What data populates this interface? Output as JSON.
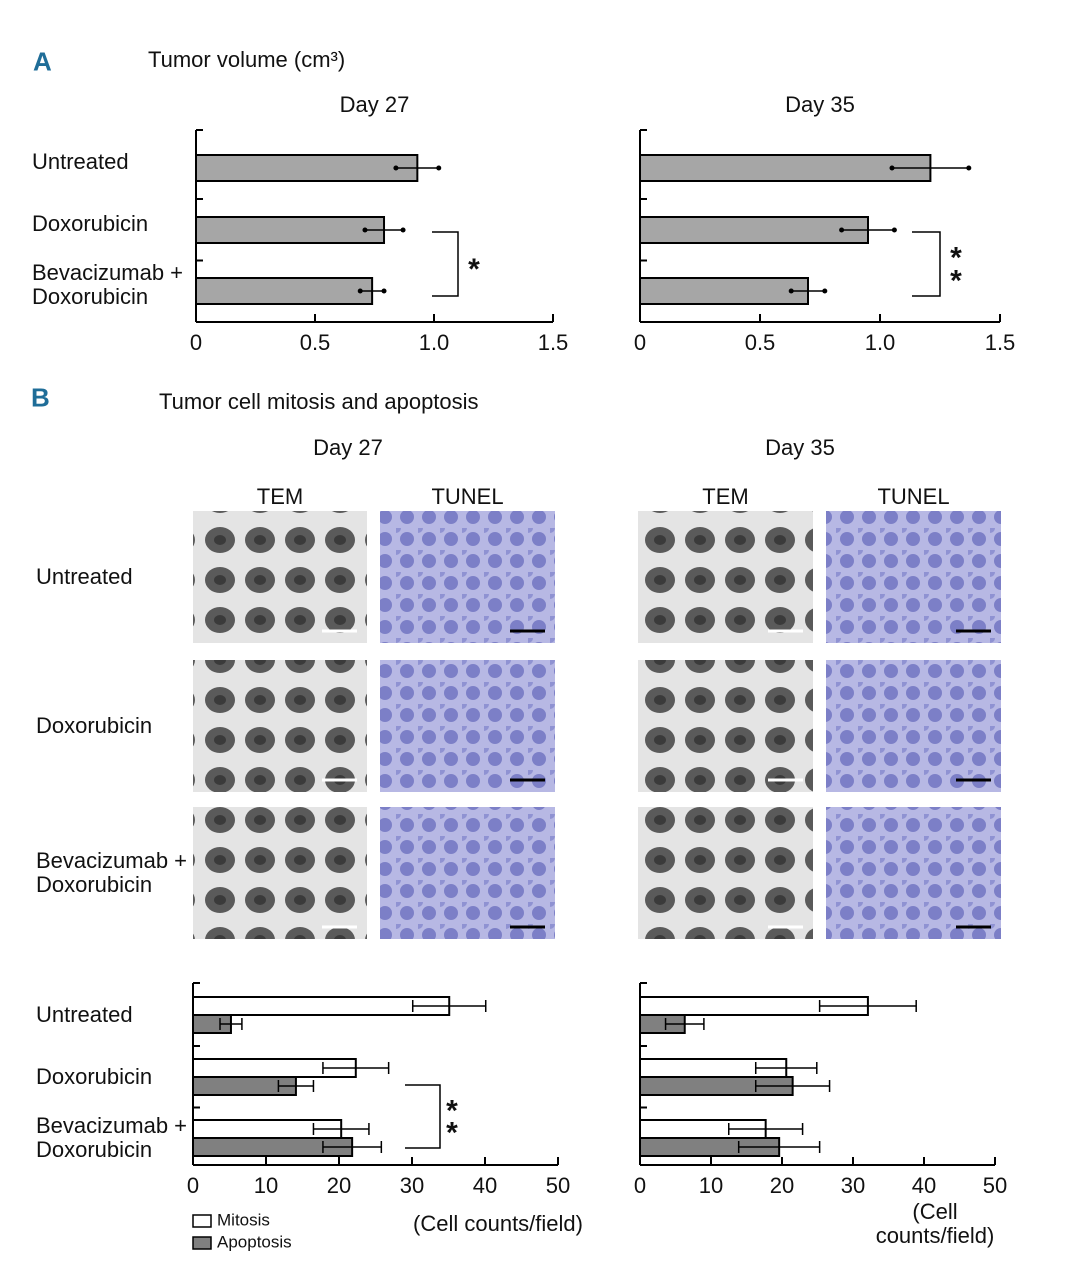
{
  "figure": {
    "panel_a_label": "A",
    "panel_a_title": "Tumor volume (cm³)",
    "panel_b_label": "B",
    "panel_b_title": "Tumor cell mitosis and apoptosis",
    "micrograph_days": [
      "Day 27",
      "Day 35"
    ],
    "micrograph_columns": [
      "TEM",
      "TUNEL",
      "TEM",
      "TUNEL"
    ],
    "micrograph_rows": [
      "Untreated",
      "Doxorubicin",
      "Bevacizumab +\nDoxorubicin"
    ]
  },
  "chart_data": [
    {
      "type": "bar",
      "orientation": "horizontal",
      "title": "Day 27",
      "categories": [
        "Untreated",
        "Doxorubicin",
        "Bevacizumab +\nDoxorubicin"
      ],
      "series": [
        {
          "color": "#a6a6a6",
          "values": [
            0.93,
            0.79,
            0.74
          ],
          "errors": [
            0.09,
            0.08,
            0.05
          ]
        }
      ],
      "xlim": [
        0,
        1.5
      ],
      "xticks": [
        0,
        0.5,
        {
          "value": 1.0,
          "label": "1.0"
        },
        1.5
      ],
      "annotation": "*"
    },
    {
      "type": "bar",
      "orientation": "horizontal",
      "title": "Day 35",
      "categories": [
        null,
        null,
        null
      ],
      "series": [
        {
          "color": "#a6a6a6",
          "values": [
            1.21,
            0.95,
            0.7
          ],
          "errors": [
            0.16,
            0.11,
            0.07
          ]
        }
      ],
      "xlim": [
        0,
        1.5
      ],
      "xticks": [
        0,
        0.5,
        {
          "value": 1.0,
          "label": "1.0"
        },
        1.5
      ],
      "annotation": "*\n*"
    },
    {
      "type": "bar",
      "orientation": "horizontal",
      "categories": [
        "Untreated",
        "Doxorubicin",
        "Bevacizumab +\nDoxorubicin"
      ],
      "series": [
        {
          "name": "Mitosis",
          "color": "#ffffff",
          "values": [
            35.1,
            22.3,
            20.3
          ],
          "errors": [
            5.0,
            4.5,
            3.8
          ]
        },
        {
          "name": "Apoptosis",
          "color": "#808080",
          "values": [
            5.2,
            14.1,
            21.8
          ],
          "errors": [
            1.5,
            2.4,
            4.0
          ]
        }
      ],
      "xlim": [
        0,
        50
      ],
      "xticks": [
        0,
        10,
        20,
        30,
        40,
        50
      ],
      "xlabel": "(Cell counts/field)",
      "legend": "bottom-left",
      "annotation": "*\n*"
    },
    {
      "type": "bar",
      "orientation": "horizontal",
      "categories": [
        null,
        null,
        null
      ],
      "series": [
        {
          "name": "Mitosis",
          "color": "#ffffff",
          "values": [
            32.1,
            20.6,
            17.7
          ],
          "errors": [
            6.8,
            4.3,
            5.2
          ]
        },
        {
          "name": "Apoptosis",
          "color": "#808080",
          "values": [
            6.3,
            21.5,
            19.6
          ],
          "errors": [
            2.7,
            5.2,
            5.7
          ]
        }
      ],
      "xlim": [
        0,
        50
      ],
      "xticks": [
        0,
        10,
        20,
        30,
        40,
        50
      ],
      "xlabel": "(Cell counts/field)"
    }
  ]
}
